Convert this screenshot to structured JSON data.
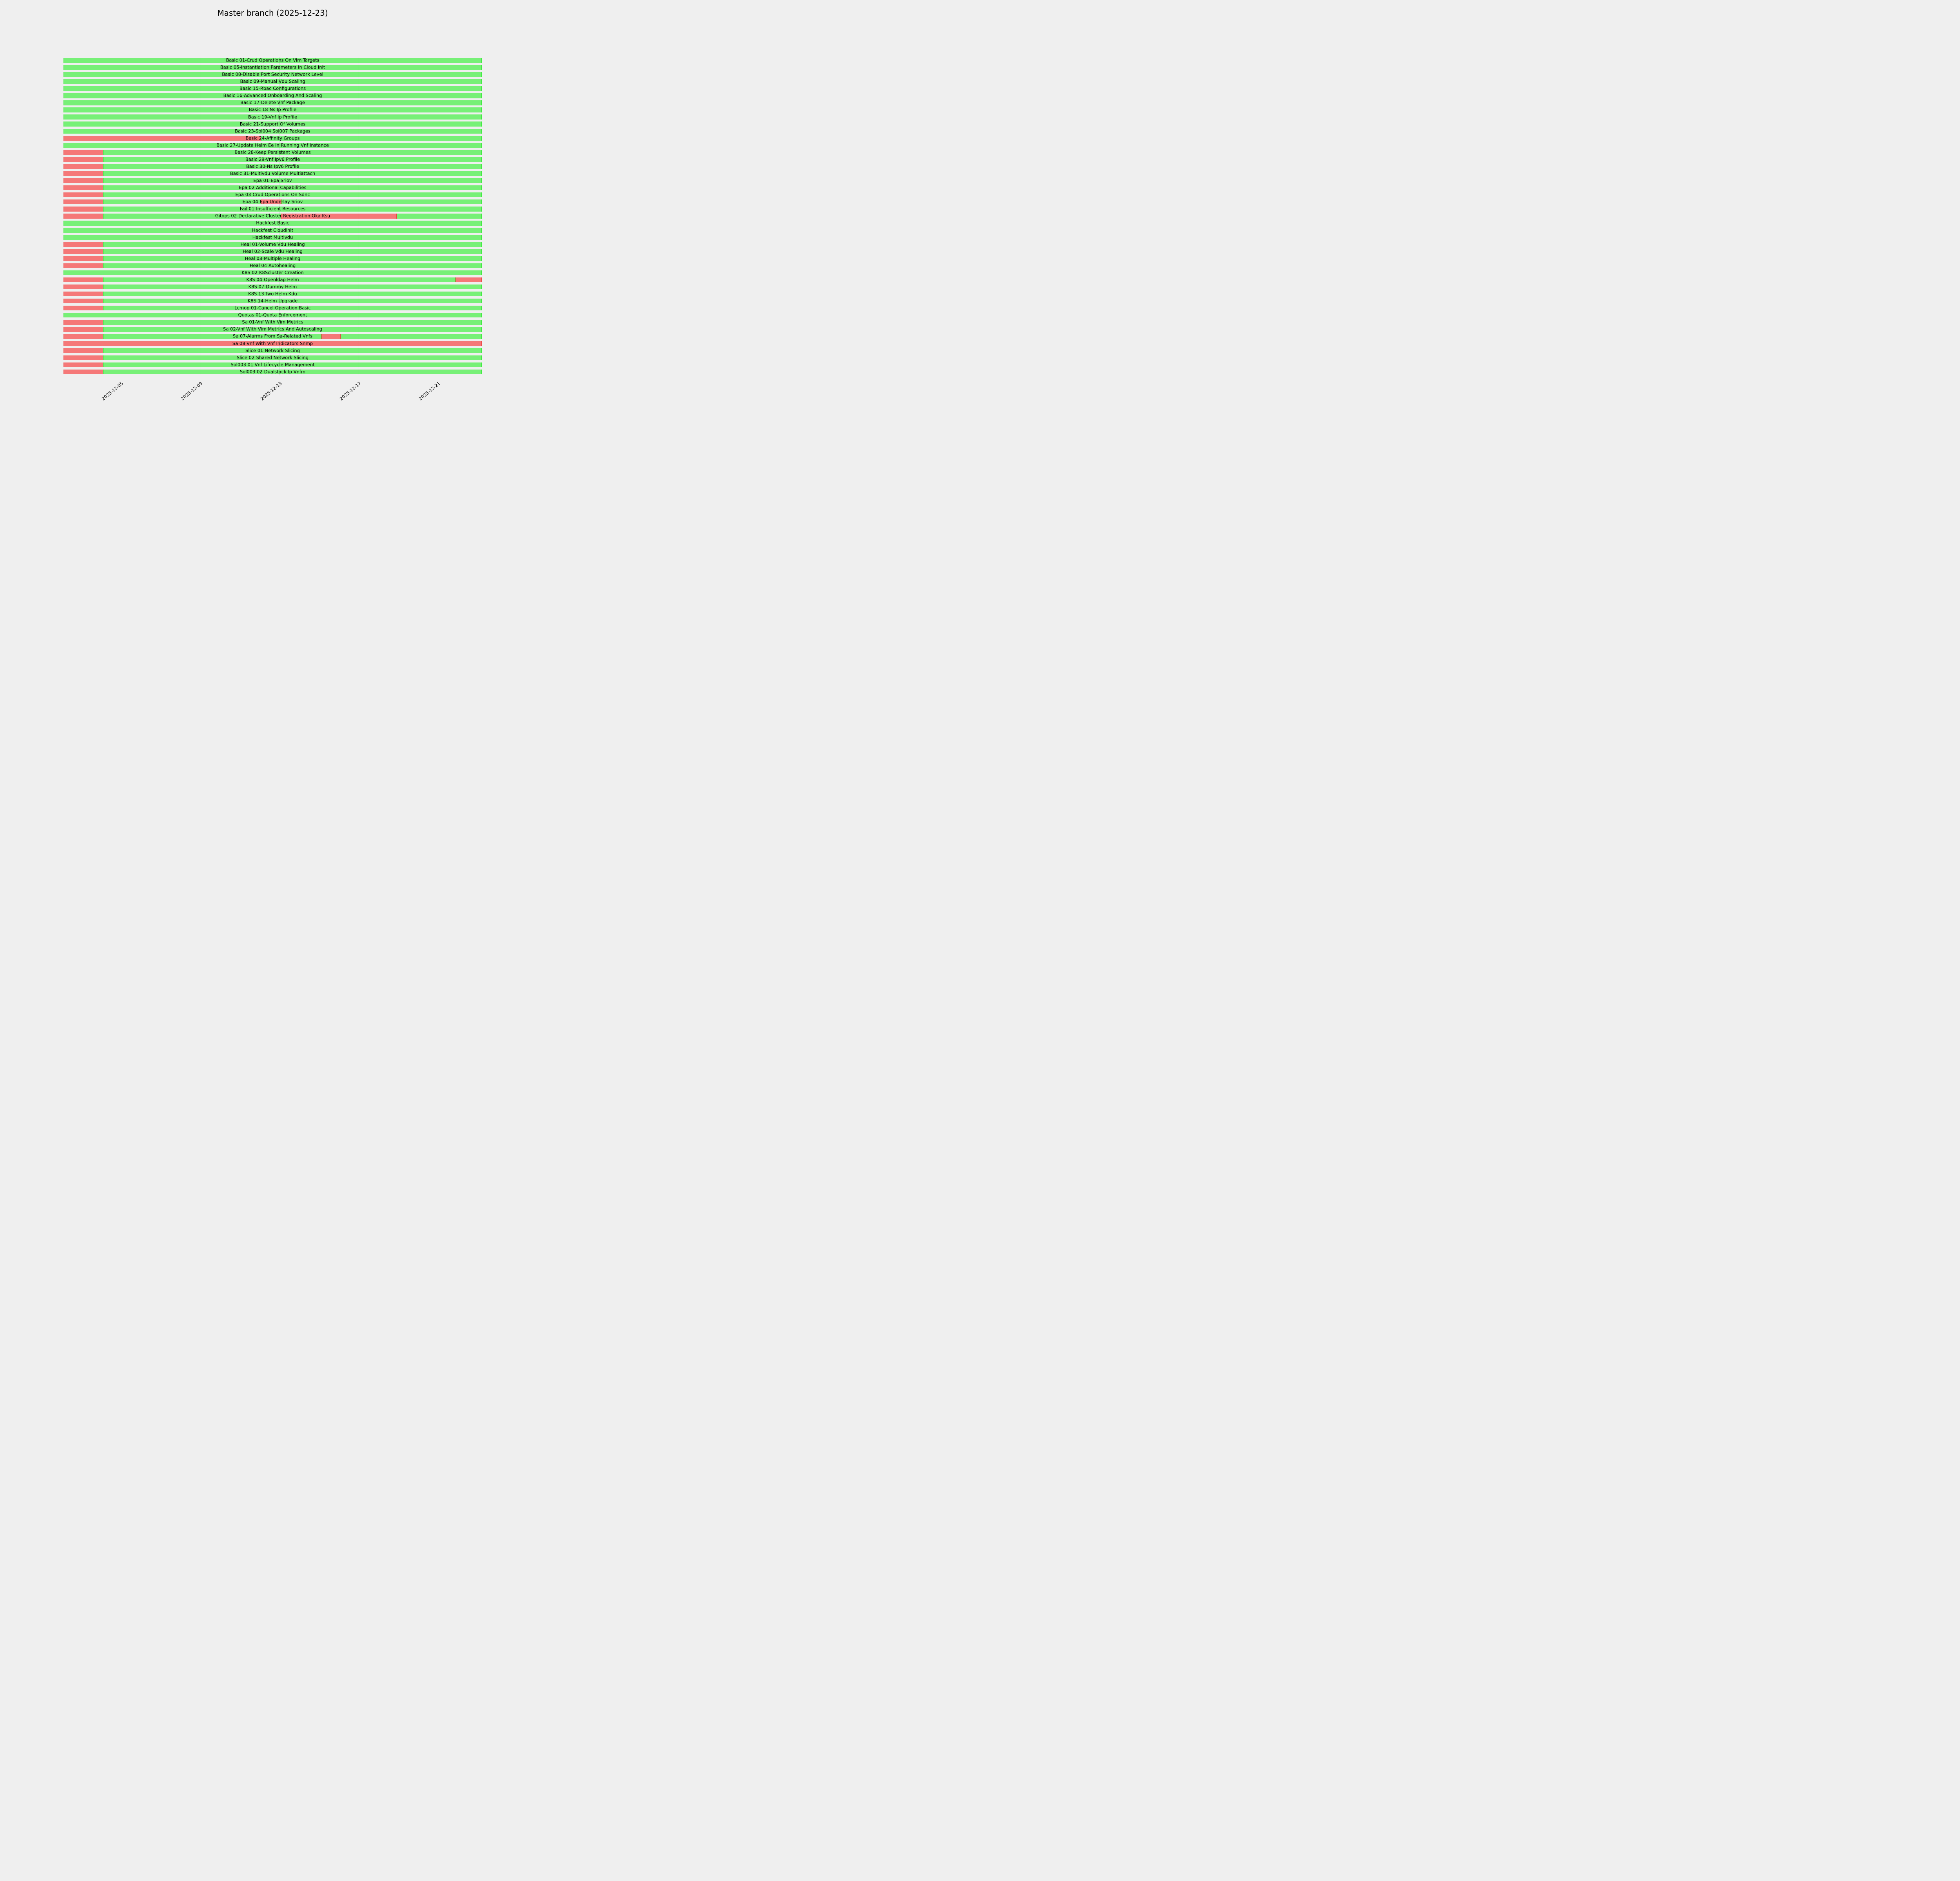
{
  "chart_data": {
    "type": "bar",
    "variant": "horizontal-status-timeline-gantt",
    "title": "Master branch (2025-12-23)",
    "background_color": "#efefef",
    "grid": true,
    "legend": false,
    "status_colors": {
      "pass": "#77f077",
      "fail": "#f57878"
    },
    "x_axis": {
      "start": "2025-12-02T03:00",
      "end": "2025-12-23T05:00",
      "tick_rotation_deg": 40,
      "ticks": [
        {
          "label": "2025-12-05",
          "date": "2025-12-05T00:00"
        },
        {
          "label": "2025-12-09",
          "date": "2025-12-09T00:00"
        },
        {
          "label": "2025-12-13",
          "date": "2025-12-13T00:00"
        },
        {
          "label": "2025-12-17",
          "date": "2025-12-17T00:00"
        },
        {
          "label": "2025-12-21",
          "date": "2025-12-21T00:00"
        }
      ]
    },
    "rows": [
      {
        "label": "Basic 01-Crud Operations On Vim Targets",
        "segments": [
          {
            "start": "2025-12-02T03:00",
            "end": "2025-12-23T05:00",
            "status": "pass"
          }
        ]
      },
      {
        "label": "Basic 05-Instantiation Parameters In Cloud Init",
        "segments": [
          {
            "start": "2025-12-02T03:00",
            "end": "2025-12-23T05:00",
            "status": "pass"
          }
        ]
      },
      {
        "label": "Basic 08-Disable Port Security Network Level",
        "segments": [
          {
            "start": "2025-12-02T03:00",
            "end": "2025-12-23T05:00",
            "status": "pass"
          }
        ]
      },
      {
        "label": "Basic 09-Manual Vdu Scaling",
        "segments": [
          {
            "start": "2025-12-02T03:00",
            "end": "2025-12-23T05:00",
            "status": "pass"
          }
        ]
      },
      {
        "label": "Basic 15-Rbac Configurations",
        "segments": [
          {
            "start": "2025-12-02T03:00",
            "end": "2025-12-23T05:00",
            "status": "pass"
          }
        ]
      },
      {
        "label": "Basic 16-Advanced Onboarding And Scaling",
        "segments": [
          {
            "start": "2025-12-02T03:00",
            "end": "2025-12-23T05:00",
            "status": "pass"
          }
        ]
      },
      {
        "label": "Basic 17-Delete Vnf Package",
        "segments": [
          {
            "start": "2025-12-02T03:00",
            "end": "2025-12-23T05:00",
            "status": "pass"
          }
        ]
      },
      {
        "label": "Basic 18-Ns Ip Profile",
        "segments": [
          {
            "start": "2025-12-02T03:00",
            "end": "2025-12-23T05:00",
            "status": "pass"
          }
        ]
      },
      {
        "label": "Basic 19-Vnf Ip Profile",
        "segments": [
          {
            "start": "2025-12-02T03:00",
            "end": "2025-12-23T05:00",
            "status": "pass"
          }
        ]
      },
      {
        "label": "Basic 21-Support Of Volumes",
        "segments": [
          {
            "start": "2025-12-02T03:00",
            "end": "2025-12-23T05:00",
            "status": "pass"
          }
        ]
      },
      {
        "label": "Basic 23-Sol004 Sol007 Packages",
        "segments": [
          {
            "start": "2025-12-02T03:00",
            "end": "2025-12-23T05:00",
            "status": "pass"
          }
        ]
      },
      {
        "label": "Basic 24-Affinity Groups",
        "segments": [
          {
            "start": "2025-12-02T03:00",
            "end": "2025-12-12T02:00",
            "status": "fail"
          },
          {
            "start": "2025-12-12T02:00",
            "end": "2025-12-23T05:00",
            "status": "pass"
          }
        ]
      },
      {
        "label": "Basic 27-Update Helm Ee In Running Vnf Instance",
        "segments": [
          {
            "start": "2025-12-02T03:00",
            "end": "2025-12-23T05:00",
            "status": "pass"
          }
        ]
      },
      {
        "label": "Basic 28-Keep Persistent Volumes",
        "segments": [
          {
            "start": "2025-12-02T03:00",
            "end": "2025-12-04T03:00",
            "status": "fail"
          },
          {
            "start": "2025-12-04T03:00",
            "end": "2025-12-23T05:00",
            "status": "pass"
          }
        ]
      },
      {
        "label": "Basic 29-Vnf Ipv6 Profile",
        "segments": [
          {
            "start": "2025-12-02T03:00",
            "end": "2025-12-04T03:00",
            "status": "fail"
          },
          {
            "start": "2025-12-04T03:00",
            "end": "2025-12-23T05:00",
            "status": "pass"
          }
        ]
      },
      {
        "label": "Basic 30-Ns Ipv6 Profile",
        "segments": [
          {
            "start": "2025-12-02T03:00",
            "end": "2025-12-04T03:00",
            "status": "fail"
          },
          {
            "start": "2025-12-04T03:00",
            "end": "2025-12-23T05:00",
            "status": "pass"
          }
        ]
      },
      {
        "label": "Basic 31-Multivdu Volume Multiattach",
        "segments": [
          {
            "start": "2025-12-02T03:00",
            "end": "2025-12-04T03:00",
            "status": "fail"
          },
          {
            "start": "2025-12-04T03:00",
            "end": "2025-12-23T05:00",
            "status": "pass"
          }
        ]
      },
      {
        "label": "Epa 01-Epa Sriov",
        "segments": [
          {
            "start": "2025-12-02T03:00",
            "end": "2025-12-04T03:00",
            "status": "fail"
          },
          {
            "start": "2025-12-04T03:00",
            "end": "2025-12-23T05:00",
            "status": "pass"
          }
        ]
      },
      {
        "label": "Epa 02-Additional Capabilities",
        "segments": [
          {
            "start": "2025-12-02T03:00",
            "end": "2025-12-04T03:00",
            "status": "fail"
          },
          {
            "start": "2025-12-04T03:00",
            "end": "2025-12-23T05:00",
            "status": "pass"
          }
        ]
      },
      {
        "label": "Epa 03-Crud Operations On Sdnc",
        "segments": [
          {
            "start": "2025-12-02T03:00",
            "end": "2025-12-04T03:00",
            "status": "fail"
          },
          {
            "start": "2025-12-04T03:00",
            "end": "2025-12-23T05:00",
            "status": "pass"
          }
        ]
      },
      {
        "label": "Epa 04-Epa Underlay Sriov",
        "segments": [
          {
            "start": "2025-12-02T03:00",
            "end": "2025-12-04T03:00",
            "status": "fail"
          },
          {
            "start": "2025-12-04T03:00",
            "end": "2025-12-12T02:00",
            "status": "pass"
          },
          {
            "start": "2025-12-12T02:00",
            "end": "2025-12-13T02:30",
            "status": "fail"
          },
          {
            "start": "2025-12-13T02:30",
            "end": "2025-12-23T05:00",
            "status": "pass"
          }
        ]
      },
      {
        "label": "Fail 01-Insufficient Resources",
        "segments": [
          {
            "start": "2025-12-02T03:00",
            "end": "2025-12-04T03:00",
            "status": "fail"
          },
          {
            "start": "2025-12-04T03:00",
            "end": "2025-12-23T05:00",
            "status": "pass"
          }
        ]
      },
      {
        "label": "Gitops 02-Declarative Cluster Registration Oka Ksu",
        "segments": [
          {
            "start": "2025-12-02T03:00",
            "end": "2025-12-04T03:00",
            "status": "fail"
          },
          {
            "start": "2025-12-04T03:00",
            "end": "2025-12-13T02:00",
            "status": "pass"
          },
          {
            "start": "2025-12-13T02:00",
            "end": "2025-12-18T22:00",
            "status": "fail"
          },
          {
            "start": "2025-12-18T22:00",
            "end": "2025-12-23T05:00",
            "status": "pass"
          }
        ]
      },
      {
        "label": "Hackfest Basic",
        "segments": [
          {
            "start": "2025-12-02T03:00",
            "end": "2025-12-23T05:00",
            "status": "pass"
          }
        ]
      },
      {
        "label": "Hackfest Cloudinit",
        "segments": [
          {
            "start": "2025-12-02T03:00",
            "end": "2025-12-23T05:00",
            "status": "pass"
          }
        ]
      },
      {
        "label": "Hackfest Multivdu",
        "segments": [
          {
            "start": "2025-12-02T03:00",
            "end": "2025-12-23T05:00",
            "status": "pass"
          }
        ]
      },
      {
        "label": "Heal 01-Volume Vdu Healing",
        "segments": [
          {
            "start": "2025-12-02T03:00",
            "end": "2025-12-04T03:00",
            "status": "fail"
          },
          {
            "start": "2025-12-04T03:00",
            "end": "2025-12-23T05:00",
            "status": "pass"
          }
        ]
      },
      {
        "label": "Heal 02-Scale Vdu Healing",
        "segments": [
          {
            "start": "2025-12-02T03:00",
            "end": "2025-12-04T03:00",
            "status": "fail"
          },
          {
            "start": "2025-12-04T03:00",
            "end": "2025-12-23T05:00",
            "status": "pass"
          }
        ]
      },
      {
        "label": "Heal 03-Multiple Healing",
        "segments": [
          {
            "start": "2025-12-02T03:00",
            "end": "2025-12-04T03:00",
            "status": "fail"
          },
          {
            "start": "2025-12-04T03:00",
            "end": "2025-12-23T05:00",
            "status": "pass"
          }
        ]
      },
      {
        "label": "Heal 04-Autohealing",
        "segments": [
          {
            "start": "2025-12-02T03:00",
            "end": "2025-12-04T03:00",
            "status": "fail"
          },
          {
            "start": "2025-12-04T03:00",
            "end": "2025-12-23T05:00",
            "status": "pass"
          }
        ]
      },
      {
        "label": "K8S 02-K8Scluster Creation",
        "segments": [
          {
            "start": "2025-12-02T03:00",
            "end": "2025-12-23T05:00",
            "status": "pass"
          }
        ]
      },
      {
        "label": "K8S 04-Openldap Helm",
        "segments": [
          {
            "start": "2025-12-02T03:00",
            "end": "2025-12-04T03:00",
            "status": "fail"
          },
          {
            "start": "2025-12-04T03:00",
            "end": "2025-12-21T21:00",
            "status": "pass"
          },
          {
            "start": "2025-12-21T21:00",
            "end": "2025-12-23T05:00",
            "status": "fail"
          }
        ]
      },
      {
        "label": "K8S 07-Dummy Helm",
        "segments": [
          {
            "start": "2025-12-02T03:00",
            "end": "2025-12-04T03:00",
            "status": "fail"
          },
          {
            "start": "2025-12-04T03:00",
            "end": "2025-12-23T05:00",
            "status": "pass"
          }
        ]
      },
      {
        "label": "K8S 13-Two Helm Kdu",
        "segments": [
          {
            "start": "2025-12-02T03:00",
            "end": "2025-12-04T03:00",
            "status": "fail"
          },
          {
            "start": "2025-12-04T03:00",
            "end": "2025-12-23T05:00",
            "status": "pass"
          }
        ]
      },
      {
        "label": "K8S 14-Helm Upgrade",
        "segments": [
          {
            "start": "2025-12-02T03:00",
            "end": "2025-12-04T03:00",
            "status": "fail"
          },
          {
            "start": "2025-12-04T03:00",
            "end": "2025-12-23T05:00",
            "status": "pass"
          }
        ]
      },
      {
        "label": "Lcmop 01-Cancel Operation Basic",
        "segments": [
          {
            "start": "2025-12-02T03:00",
            "end": "2025-12-04T03:00",
            "status": "fail"
          },
          {
            "start": "2025-12-04T03:00",
            "end": "2025-12-23T05:00",
            "status": "pass"
          }
        ]
      },
      {
        "label": "Quotas 01-Quota Enforcement",
        "segments": [
          {
            "start": "2025-12-02T03:00",
            "end": "2025-12-23T05:00",
            "status": "pass"
          }
        ]
      },
      {
        "label": "Sa 01-Vnf With Vim Metrics",
        "segments": [
          {
            "start": "2025-12-02T03:00",
            "end": "2025-12-04T03:00",
            "status": "fail"
          },
          {
            "start": "2025-12-04T03:00",
            "end": "2025-12-23T05:00",
            "status": "pass"
          }
        ]
      },
      {
        "label": "Sa 02-Vnf With Vim Metrics And Autoscaling",
        "segments": [
          {
            "start": "2025-12-02T03:00",
            "end": "2025-12-04T03:00",
            "status": "fail"
          },
          {
            "start": "2025-12-04T03:00",
            "end": "2025-12-23T05:00",
            "status": "pass"
          }
        ]
      },
      {
        "label": "Sa 07-Alarms From Sa-Related Vnfs",
        "segments": [
          {
            "start": "2025-12-02T03:00",
            "end": "2025-12-04T03:00",
            "status": "fail"
          },
          {
            "start": "2025-12-04T03:00",
            "end": "2025-12-15T03:00",
            "status": "pass"
          },
          {
            "start": "2025-12-15T03:00",
            "end": "2025-12-16T02:30",
            "status": "fail"
          },
          {
            "start": "2025-12-16T02:30",
            "end": "2025-12-23T05:00",
            "status": "pass"
          }
        ]
      },
      {
        "label": "Sa 08-Vnf With Vnf Indicators Snmp",
        "segments": [
          {
            "start": "2025-12-02T03:00",
            "end": "2025-12-23T05:00",
            "status": "fail"
          }
        ]
      },
      {
        "label": "Slice 01-Network Slicing",
        "segments": [
          {
            "start": "2025-12-02T03:00",
            "end": "2025-12-04T03:00",
            "status": "fail"
          },
          {
            "start": "2025-12-04T03:00",
            "end": "2025-12-23T05:00",
            "status": "pass"
          }
        ]
      },
      {
        "label": "Slice 02-Shared Network Slicing",
        "segments": [
          {
            "start": "2025-12-02T03:00",
            "end": "2025-12-04T03:00",
            "status": "fail"
          },
          {
            "start": "2025-12-04T03:00",
            "end": "2025-12-23T05:00",
            "status": "pass"
          }
        ]
      },
      {
        "label": "Sol003 01-Vnf-Lifecycle-Management",
        "segments": [
          {
            "start": "2025-12-02T03:00",
            "end": "2025-12-04T03:00",
            "status": "fail"
          },
          {
            "start": "2025-12-04T03:00",
            "end": "2025-12-23T05:00",
            "status": "pass"
          }
        ]
      },
      {
        "label": "Sol003 02-Dualstack Ip Vnfm",
        "segments": [
          {
            "start": "2025-12-02T03:00",
            "end": "2025-12-04T03:00",
            "status": "fail"
          },
          {
            "start": "2025-12-04T03:00",
            "end": "2025-12-23T05:00",
            "status": "pass"
          }
        ]
      }
    ]
  }
}
